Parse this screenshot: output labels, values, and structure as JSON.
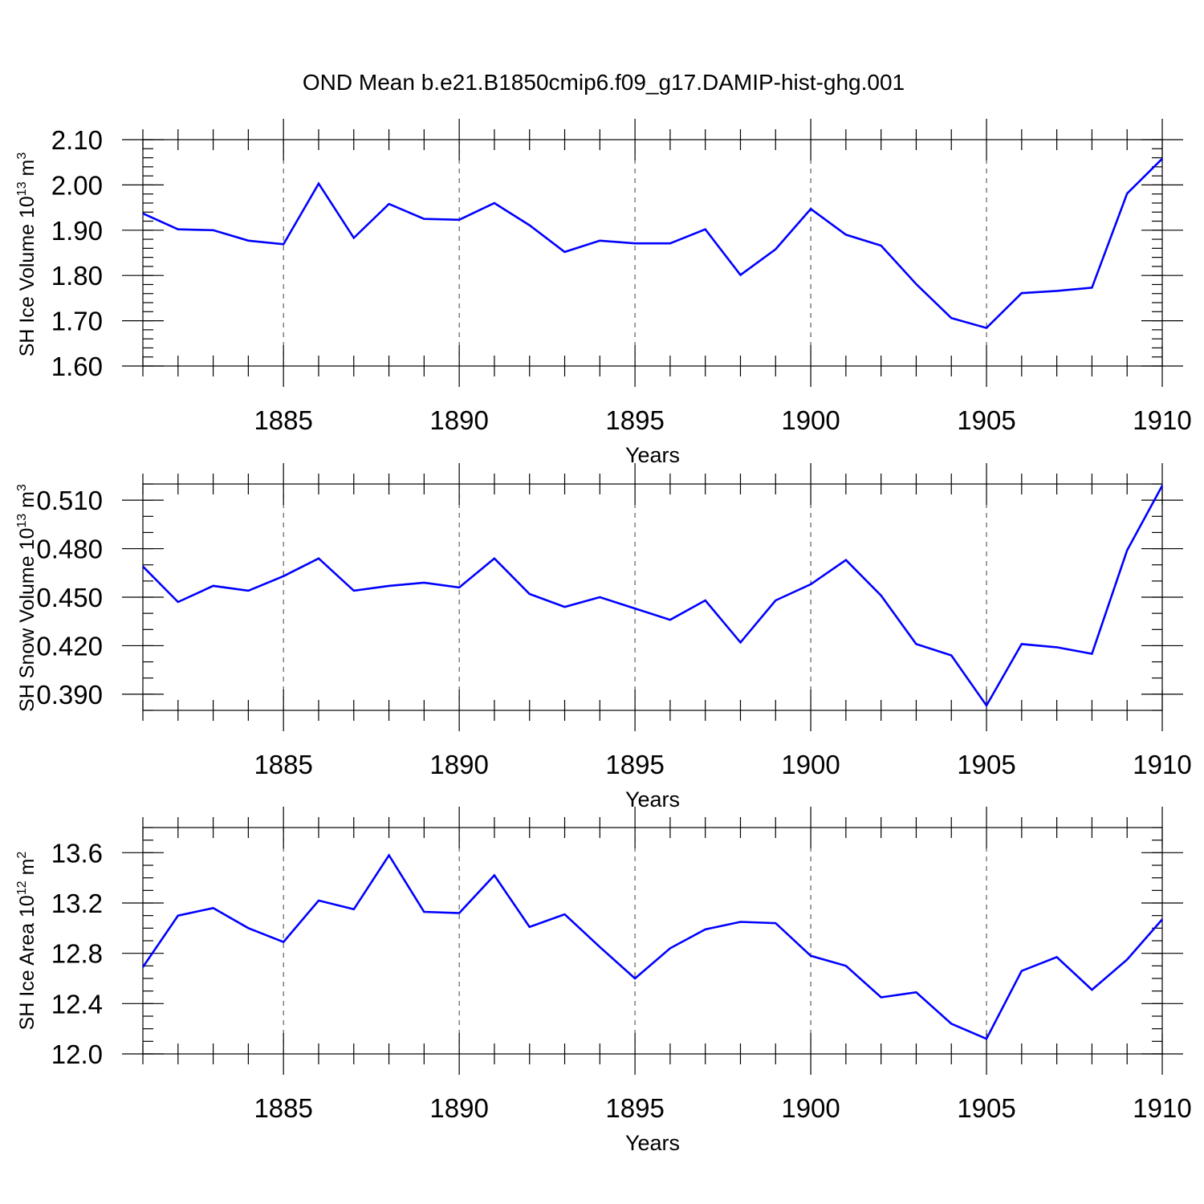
{
  "chart_data": {
    "type": "line",
    "title": "OND Mean b.e21.B1850cmip6.f09_g17.DAMIP-hist-ghg.001",
    "line_color": "#0000ff",
    "x": [
      1881,
      1882,
      1883,
      1884,
      1885,
      1886,
      1887,
      1888,
      1889,
      1890,
      1891,
      1892,
      1893,
      1894,
      1895,
      1896,
      1897,
      1898,
      1899,
      1900,
      1901,
      1902,
      1903,
      1904,
      1905,
      1906,
      1907,
      1908,
      1909,
      1910
    ],
    "xlim": [
      1881,
      1910
    ],
    "x_ticks": [
      1885,
      1890,
      1895,
      1900,
      1905,
      1910
    ],
    "x_tick_labels": [
      "1885",
      "1890",
      "1895",
      "1900",
      "1905",
      "1910"
    ],
    "xlabel": "Years",
    "grid": "vertical dashed at major x ticks",
    "panels": [
      {
        "ylabel_prefix": "SH Ice Volume 10",
        "ylabel_exponent": "13",
        "ylabel_unit": " m",
        "ylabel_unit_exponent": "3",
        "ylim": [
          1.6,
          2.1
        ],
        "y_ticks": [
          1.6,
          1.7,
          1.8,
          1.9,
          2.0,
          2.1
        ],
        "y_tick_labels": [
          "1.60",
          "1.70",
          "1.80",
          "1.90",
          "2.00",
          "2.10"
        ],
        "y_minor_step": 0.02,
        "values": [
          1.937,
          1.902,
          1.9,
          1.877,
          1.869,
          2.003,
          1.883,
          1.958,
          1.925,
          1.923,
          1.96,
          1.911,
          1.852,
          1.877,
          1.871,
          1.871,
          1.902,
          1.801,
          1.858,
          1.947,
          1.89,
          1.866,
          1.781,
          1.706,
          1.684,
          1.761,
          1.766,
          1.773,
          1.981,
          2.058
        ]
      },
      {
        "ylabel_prefix": "SH Snow Volume 10",
        "ylabel_exponent": "13",
        "ylabel_unit": " m",
        "ylabel_unit_exponent": "3",
        "ylim": [
          0.38,
          0.52
        ],
        "y_ticks": [
          0.39,
          0.42,
          0.45,
          0.48,
          0.51
        ],
        "y_tick_labels": [
          "0.390",
          "0.420",
          "0.450",
          "0.480",
          "0.510"
        ],
        "y_minor_step": 0.01,
        "values": [
          0.469,
          0.447,
          0.457,
          0.454,
          0.463,
          0.474,
          0.454,
          0.457,
          0.459,
          0.456,
          0.474,
          0.452,
          0.444,
          0.45,
          0.443,
          0.436,
          0.448,
          0.422,
          0.448,
          0.458,
          0.473,
          0.451,
          0.421,
          0.414,
          0.383,
          0.421,
          0.419,
          0.415,
          0.479,
          0.519
        ]
      },
      {
        "ylabel_prefix": "SH Ice Area 10",
        "ylabel_exponent": "12",
        "ylabel_unit": " m",
        "ylabel_unit_exponent": "2",
        "ylim": [
          12.0,
          13.8
        ],
        "y_ticks": [
          12.0,
          12.4,
          12.8,
          13.2,
          13.6
        ],
        "y_tick_labels": [
          "12.0",
          "12.4",
          "12.8",
          "13.2",
          "13.6"
        ],
        "y_minor_step": 0.1,
        "values": [
          12.69,
          13.1,
          13.16,
          13.0,
          12.89,
          13.22,
          13.15,
          13.58,
          13.13,
          13.12,
          13.42,
          13.01,
          13.11,
          12.85,
          12.6,
          12.84,
          12.99,
          13.05,
          13.04,
          12.78,
          12.7,
          12.45,
          12.49,
          12.24,
          12.12,
          12.66,
          12.77,
          12.51,
          12.75,
          13.07
        ]
      }
    ]
  }
}
